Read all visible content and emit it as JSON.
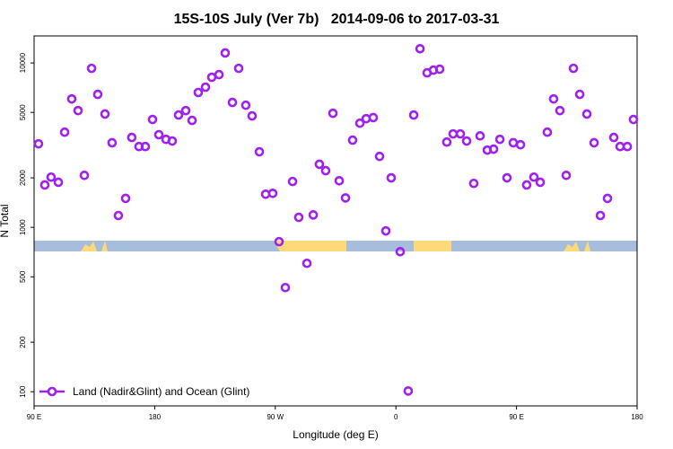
{
  "chart_data": {
    "type": "scatter",
    "title": "15S-10S July (Ver 7b)   2014-09-06 to 2017-03-31",
    "xlabel": "Longitude (deg E)",
    "ylabel": "N Total",
    "xlim": [
      90,
      540
    ],
    "xticks": [
      {
        "value": 90,
        "label": "90 E"
      },
      180,
      {
        "value": 270,
        "label": "90 W"
      },
      {
        "value": 360,
        "label": "0"
      },
      {
        "value": 450,
        "label": "90 E"
      },
      {
        "value": 540,
        "label": "180"
      }
    ],
    "ylim": [
      82,
      14600
    ],
    "ylog": true,
    "yticks": [
      100,
      200,
      500,
      1000,
      2000,
      5000,
      10000
    ],
    "legend": "bottom-left",
    "series": [
      {
        "name": "Land (Nadir&Glint) and Ocean (Glint)",
        "color": "#a020f0",
        "x": [
          93.3,
          98.0,
          102.7,
          108.1,
          112.8,
          118.1,
          122.8,
          127.5,
          132.9,
          137.5,
          142.9,
          148.2,
          152.9,
          158.3,
          162.9,
          168.3,
          173.0,
          178.4,
          183.1,
          188.4,
          193.1,
          197.8,
          203.2,
          207.9,
          212.5,
          217.9,
          222.6,
          228.0,
          232.6,
          238.0,
          242.7,
          248.0,
          252.7,
          258.1,
          262.8,
          268.1,
          272.8,
          277.5,
          282.9,
          287.5,
          293.6,
          298.3,
          302.9,
          307.6,
          313.0,
          317.7,
          322.4,
          327.7,
          333.1,
          337.8,
          343.1,
          347.8,
          352.5,
          356.5,
          363.2,
          369.2,
          373.3,
          378.0,
          383.3,
          388.0,
          392.7,
          398.0,
          402.7,
          408.1,
          412.8,
          418.1,
          422.8,
          428.2,
          432.9,
          437.6,
          442.9,
          447.6,
          453.0,
          457.6,
          463.0,
          467.7,
          473.0,
          477.7,
          482.4,
          487.1,
          492.5,
          497.2,
          502.5,
          507.9,
          512.6,
          517.9,
          522.6,
          527.3,
          532.7,
          537.3
        ],
        "values": [
          3220,
          1810,
          2020,
          1880,
          3790,
          6040,
          5130,
          2070,
          9270,
          6440,
          4890,
          3270,
          1180,
          1500,
          3520,
          3100,
          3100,
          4530,
          3660,
          3430,
          3350,
          4820,
          5130,
          4470,
          6610,
          7120,
          8180,
          8490,
          11500,
          5750,
          9270,
          5530,
          4760,
          2880,
          1590,
          1610,
          818,
          430,
          1900,
          1150,
          604,
          1190,
          2420,
          2210,
          4940,
          1920,
          1510,
          3390,
          4300,
          4580,
          4650,
          2700,
          951,
          2000,
          711,
          101,
          4820,
          12200,
          8710,
          9040,
          9160,
          3300,
          3700,
          3700,
          3350,
          1850,
          3600,
          2950,
          2990,
          3430,
          2000,
          3270,
          3180,
          1810,
          2020,
          1880,
          3790,
          6040,
          5130,
          2070,
          9270,
          6440,
          4890,
          3270,
          1180,
          1500,
          3520,
          3100,
          3100,
          4530
        ]
      }
    ]
  }
}
